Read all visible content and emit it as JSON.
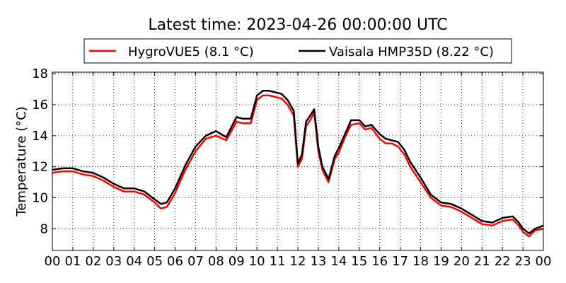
{
  "chart_data": {
    "type": "line",
    "title": "Latest time: 2023-04-26 00:00:00 UTC",
    "xlabel": "",
    "ylabel": "Temperature (°C)",
    "xlim": [
      0,
      24
    ],
    "ylim": [
      6.6,
      18.1
    ],
    "x_ticks": [
      0,
      1,
      2,
      3,
      4,
      5,
      6,
      7,
      8,
      9,
      10,
      11,
      12,
      13,
      14,
      15,
      16,
      17,
      18,
      19,
      20,
      21,
      22,
      23,
      24
    ],
    "x_tick_labels": [
      "00",
      "01",
      "02",
      "03",
      "04",
      "05",
      "06",
      "07",
      "08",
      "09",
      "10",
      "11",
      "12",
      "13",
      "14",
      "15",
      "16",
      "17",
      "18",
      "19",
      "20",
      "21",
      "22",
      "23",
      "00"
    ],
    "y_ticks": [
      8,
      10,
      12,
      14,
      16,
      18
    ],
    "y_tick_labels": [
      "8",
      "10",
      "12",
      "14",
      "16",
      "18"
    ],
    "grid": true,
    "legend_position": "top-center",
    "series": [
      {
        "name": "HygroVUE5 (8.1 °C)",
        "color": "#ff0000",
        "x": [
          0,
          0.5,
          1,
          1.5,
          2,
          2.5,
          3,
          3.5,
          4,
          4.5,
          5,
          5.3,
          5.6,
          6,
          6.5,
          7,
          7.5,
          8,
          8.5,
          9,
          9.3,
          9.7,
          10,
          10.3,
          10.6,
          10.9,
          11.2,
          11.5,
          11.8,
          12,
          12.2,
          12.4,
          12.6,
          12.8,
          13,
          13.2,
          13.5,
          13.8,
          14,
          14.3,
          14.6,
          15,
          15.3,
          15.6,
          16,
          16.3,
          16.6,
          16.9,
          17.2,
          17.5,
          17.8,
          18,
          18.5,
          19,
          19.5,
          20,
          20.5,
          21,
          21.5,
          22,
          22.5,
          22.8,
          23,
          23.3,
          23.6,
          24
        ],
        "values": [
          11.6,
          11.7,
          11.7,
          11.5,
          11.4,
          11.1,
          10.7,
          10.4,
          10.4,
          10.2,
          9.7,
          9.3,
          9.4,
          10.3,
          11.8,
          13.0,
          13.8,
          14.0,
          13.7,
          14.9,
          14.8,
          14.8,
          16.3,
          16.6,
          16.6,
          16.5,
          16.4,
          16.0,
          15.3,
          12.0,
          12.5,
          14.6,
          15.0,
          15.5,
          13.0,
          11.8,
          11.0,
          12.5,
          12.9,
          13.9,
          14.7,
          14.8,
          14.4,
          14.5,
          13.8,
          13.5,
          13.5,
          13.3,
          12.8,
          12.0,
          11.4,
          11.0,
          10.0,
          9.5,
          9.4,
          9.1,
          8.7,
          8.3,
          8.2,
          8.5,
          8.6,
          8.2,
          7.8,
          7.5,
          7.9,
          8.0
        ]
      },
      {
        "name": "Vaisala HMP35D (8.22 °C)",
        "color": "#000000",
        "x": [
          0,
          0.5,
          1,
          1.5,
          2,
          2.5,
          3,
          3.5,
          4,
          4.5,
          5,
          5.3,
          5.6,
          6,
          6.5,
          7,
          7.5,
          8,
          8.5,
          9,
          9.3,
          9.7,
          10,
          10.3,
          10.6,
          10.9,
          11.2,
          11.5,
          11.8,
          12,
          12.2,
          12.4,
          12.6,
          12.8,
          13,
          13.2,
          13.5,
          13.8,
          14,
          14.3,
          14.6,
          15,
          15.3,
          15.6,
          16,
          16.3,
          16.6,
          16.9,
          17.2,
          17.5,
          17.8,
          18,
          18.5,
          19,
          19.5,
          20,
          20.5,
          21,
          21.5,
          22,
          22.5,
          22.8,
          23,
          23.3,
          23.6,
          24
        ],
        "values": [
          11.8,
          11.9,
          11.9,
          11.7,
          11.6,
          11.3,
          10.9,
          10.6,
          10.6,
          10.4,
          9.9,
          9.6,
          9.7,
          10.6,
          12.1,
          13.3,
          14.0,
          14.3,
          13.9,
          15.2,
          15.1,
          15.1,
          16.6,
          16.9,
          16.9,
          16.8,
          16.7,
          16.3,
          15.6,
          12.2,
          12.8,
          14.9,
          15.3,
          15.7,
          13.3,
          12.0,
          11.2,
          12.7,
          13.2,
          14.1,
          15.0,
          15.0,
          14.6,
          14.7,
          14.1,
          13.8,
          13.7,
          13.6,
          13.1,
          12.3,
          11.7,
          11.3,
          10.2,
          9.7,
          9.6,
          9.3,
          8.9,
          8.5,
          8.4,
          8.7,
          8.8,
          8.4,
          8.0,
          7.7,
          8.0,
          8.2
        ]
      }
    ]
  }
}
